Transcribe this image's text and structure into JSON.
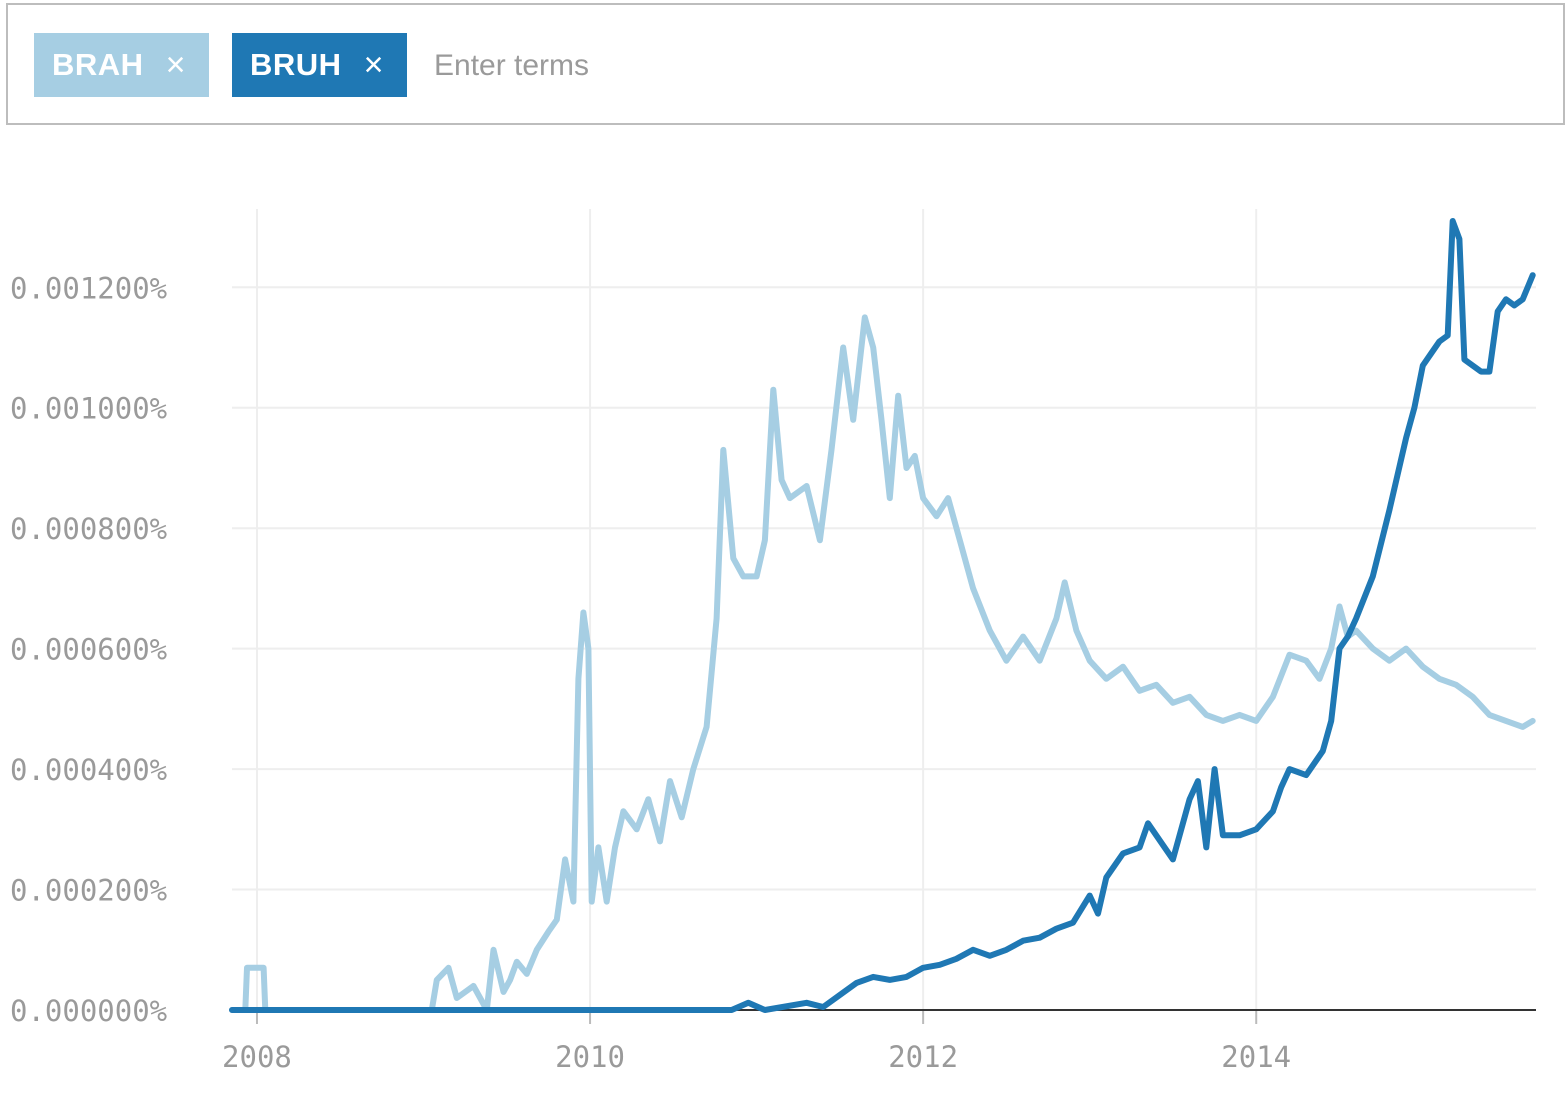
{
  "search": {
    "terms": [
      {
        "label": "BRAH",
        "color": "#a6cee3"
      },
      {
        "label": "BRUH",
        "color": "#1f78b4"
      }
    ],
    "remove_glyph": "×",
    "placeholder": "Enter terms"
  },
  "chart_data": {
    "type": "line",
    "title": "",
    "xlabel": "",
    "ylabel": "",
    "ylim": [
      0,
      0.00133
    ],
    "xlim": [
      2007.85,
      2015.68
    ],
    "grid": true,
    "legend": "none",
    "x_ticks": [
      2008,
      2010,
      2012,
      2014
    ],
    "x_tick_labels": [
      "2008",
      "2010",
      "2012",
      "2014"
    ],
    "y_ticks": [
      0,
      0.0002,
      0.0004,
      0.0006,
      0.0008,
      0.001,
      0.0012
    ],
    "y_tick_labels": [
      "0.000000%",
      "0.000200%",
      "0.000400%",
      "0.000600%",
      "0.000800%",
      "0.001000%",
      "0.001200%"
    ],
    "series": [
      {
        "name": "BRAH",
        "color": "#a6cee3",
        "points": [
          [
            2007.85,
            0
          ],
          [
            2007.93,
            0
          ],
          [
            2007.94,
            7e-05
          ],
          [
            2008.04,
            7e-05
          ],
          [
            2008.05,
            0
          ],
          [
            2009.05,
            0
          ],
          [
            2009.08,
            5e-05
          ],
          [
            2009.15,
            7e-05
          ],
          [
            2009.2,
            2e-05
          ],
          [
            2009.3,
            4e-05
          ],
          [
            2009.38,
            0
          ],
          [
            2009.42,
            0.0001
          ],
          [
            2009.48,
            3e-05
          ],
          [
            2009.52,
            5e-05
          ],
          [
            2009.56,
            8e-05
          ],
          [
            2009.62,
            6e-05
          ],
          [
            2009.68,
            0.0001
          ],
          [
            2009.75,
            0.00013
          ],
          [
            2009.8,
            0.00015
          ],
          [
            2009.85,
            0.00025
          ],
          [
            2009.9,
            0.00018
          ],
          [
            2009.93,
            0.00055
          ],
          [
            2009.96,
            0.00066
          ],
          [
            2009.99,
            0.0006
          ],
          [
            2010.01,
            0.00018
          ],
          [
            2010.05,
            0.00027
          ],
          [
            2010.1,
            0.00018
          ],
          [
            2010.15,
            0.00027
          ],
          [
            2010.2,
            0.00033
          ],
          [
            2010.28,
            0.0003
          ],
          [
            2010.35,
            0.00035
          ],
          [
            2010.42,
            0.00028
          ],
          [
            2010.48,
            0.00038
          ],
          [
            2010.55,
            0.00032
          ],
          [
            2010.62,
            0.0004
          ],
          [
            2010.7,
            0.00047
          ],
          [
            2010.76,
            0.00065
          ],
          [
            2010.8,
            0.00093
          ],
          [
            2010.86,
            0.00075
          ],
          [
            2010.92,
            0.00072
          ],
          [
            2011.0,
            0.00072
          ],
          [
            2011.05,
            0.00078
          ],
          [
            2011.1,
            0.00103
          ],
          [
            2011.15,
            0.00088
          ],
          [
            2011.2,
            0.00085
          ],
          [
            2011.3,
            0.00087
          ],
          [
            2011.38,
            0.00078
          ],
          [
            2011.45,
            0.00093
          ],
          [
            2011.52,
            0.0011
          ],
          [
            2011.58,
            0.00098
          ],
          [
            2011.65,
            0.00115
          ],
          [
            2011.7,
            0.0011
          ],
          [
            2011.75,
            0.00098
          ],
          [
            2011.8,
            0.00085
          ],
          [
            2011.85,
            0.00102
          ],
          [
            2011.9,
            0.0009
          ],
          [
            2011.95,
            0.00092
          ],
          [
            2012.0,
            0.00085
          ],
          [
            2012.08,
            0.00082
          ],
          [
            2012.15,
            0.00085
          ],
          [
            2012.22,
            0.00078
          ],
          [
            2012.3,
            0.0007
          ],
          [
            2012.4,
            0.00063
          ],
          [
            2012.5,
            0.00058
          ],
          [
            2012.6,
            0.00062
          ],
          [
            2012.7,
            0.00058
          ],
          [
            2012.8,
            0.00065
          ],
          [
            2012.85,
            0.00071
          ],
          [
            2012.92,
            0.00063
          ],
          [
            2013.0,
            0.00058
          ],
          [
            2013.1,
            0.00055
          ],
          [
            2013.2,
            0.00057
          ],
          [
            2013.3,
            0.00053
          ],
          [
            2013.4,
            0.00054
          ],
          [
            2013.5,
            0.00051
          ],
          [
            2013.6,
            0.00052
          ],
          [
            2013.7,
            0.00049
          ],
          [
            2013.8,
            0.00048
          ],
          [
            2013.9,
            0.00049
          ],
          [
            2014.0,
            0.00048
          ],
          [
            2014.1,
            0.00052
          ],
          [
            2014.2,
            0.00059
          ],
          [
            2014.3,
            0.00058
          ],
          [
            2014.38,
            0.00055
          ],
          [
            2014.45,
            0.0006
          ],
          [
            2014.5,
            0.00067
          ],
          [
            2014.55,
            0.00062
          ],
          [
            2014.6,
            0.00063
          ],
          [
            2014.7,
            0.0006
          ],
          [
            2014.8,
            0.00058
          ],
          [
            2014.9,
            0.0006
          ],
          [
            2015.0,
            0.00057
          ],
          [
            2015.1,
            0.00055
          ],
          [
            2015.2,
            0.00054
          ],
          [
            2015.3,
            0.00052
          ],
          [
            2015.4,
            0.00049
          ],
          [
            2015.5,
            0.00048
          ],
          [
            2015.6,
            0.00047
          ],
          [
            2015.66,
            0.00048
          ]
        ]
      },
      {
        "name": "BRUH",
        "color": "#1f78b4",
        "points": [
          [
            2007.85,
            0
          ],
          [
            2010.85,
            0
          ],
          [
            2010.95,
            1.2e-05
          ],
          [
            2011.05,
            0
          ],
          [
            2011.3,
            1.2e-05
          ],
          [
            2011.4,
            5e-06
          ],
          [
            2011.5,
            2.5e-05
          ],
          [
            2011.6,
            4.5e-05
          ],
          [
            2011.7,
            5.5e-05
          ],
          [
            2011.8,
            5e-05
          ],
          [
            2011.9,
            5.5e-05
          ],
          [
            2012.0,
            7e-05
          ],
          [
            2012.1,
            7.5e-05
          ],
          [
            2012.2,
            8.5e-05
          ],
          [
            2012.3,
            0.0001
          ],
          [
            2012.4,
            9e-05
          ],
          [
            2012.5,
            0.0001
          ],
          [
            2012.6,
            0.000115
          ],
          [
            2012.7,
            0.00012
          ],
          [
            2012.8,
            0.000135
          ],
          [
            2012.9,
            0.000145
          ],
          [
            2013.0,
            0.00019
          ],
          [
            2013.05,
            0.00016
          ],
          [
            2013.1,
            0.00022
          ],
          [
            2013.2,
            0.00026
          ],
          [
            2013.3,
            0.00027
          ],
          [
            2013.35,
            0.00031
          ],
          [
            2013.45,
            0.00027
          ],
          [
            2013.5,
            0.00025
          ],
          [
            2013.6,
            0.00035
          ],
          [
            2013.65,
            0.00038
          ],
          [
            2013.7,
            0.00027
          ],
          [
            2013.75,
            0.0004
          ],
          [
            2013.8,
            0.00029
          ],
          [
            2013.9,
            0.00029
          ],
          [
            2014.0,
            0.0003
          ],
          [
            2014.1,
            0.00033
          ],
          [
            2014.15,
            0.00037
          ],
          [
            2014.2,
            0.0004
          ],
          [
            2014.3,
            0.00039
          ],
          [
            2014.4,
            0.00043
          ],
          [
            2014.45,
            0.00048
          ],
          [
            2014.5,
            0.0006
          ],
          [
            2014.55,
            0.00062
          ],
          [
            2014.6,
            0.00065
          ],
          [
            2014.7,
            0.00072
          ],
          [
            2014.8,
            0.00083
          ],
          [
            2014.9,
            0.00095
          ],
          [
            2014.95,
            0.001
          ],
          [
            2015.0,
            0.00107
          ],
          [
            2015.05,
            0.00109
          ],
          [
            2015.1,
            0.00111
          ],
          [
            2015.15,
            0.00112
          ],
          [
            2015.18,
            0.00131
          ],
          [
            2015.22,
            0.00128
          ],
          [
            2015.25,
            0.00108
          ],
          [
            2015.3,
            0.00107
          ],
          [
            2015.35,
            0.00106
          ],
          [
            2015.4,
            0.00106
          ],
          [
            2015.45,
            0.00116
          ],
          [
            2015.5,
            0.00118
          ],
          [
            2015.55,
            0.00117
          ],
          [
            2015.6,
            0.00118
          ],
          [
            2015.66,
            0.00122
          ]
        ]
      }
    ]
  }
}
